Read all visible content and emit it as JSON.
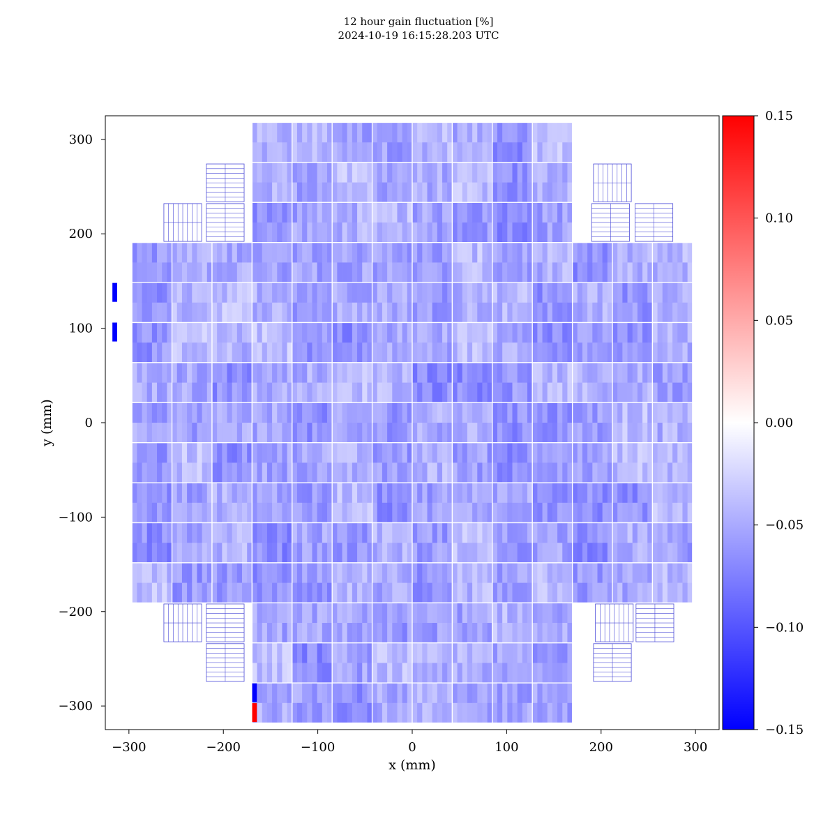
{
  "title": "12 hour gain fluctuation [%]",
  "subtitle": "2024-10-19 16:15:28.203 UTC",
  "chart_data": {
    "type": "heatmap",
    "title": "12 hour gain fluctuation [%]",
    "subtitle": "2024-10-19 16:15:28.203 UTC",
    "xlabel": "x (mm)",
    "ylabel": "y (mm)",
    "xlim": [
      -325,
      325
    ],
    "ylim": [
      -325,
      325
    ],
    "xticks": [
      -300,
      -200,
      -100,
      0,
      100,
      200,
      300
    ],
    "yticks": [
      -300,
      -200,
      -100,
      0,
      100,
      200,
      300
    ],
    "xtick_labels": [
      "−300",
      "−200",
      "−100",
      "0",
      "100",
      "200",
      "300"
    ],
    "ytick_labels": [
      "−300",
      "−200",
      "−100",
      "0",
      "100",
      "200",
      "300"
    ],
    "colormap": "bwr",
    "color_low": "#0000ff",
    "color_mid": "#ffffff",
    "color_high": "#ff0000",
    "colorbar_range": [
      -0.15,
      0.15
    ],
    "colorbar_ticks": [
      -0.15,
      -0.1,
      -0.05,
      0.0,
      0.05,
      0.1,
      0.15
    ],
    "colorbar_tick_labels": [
      "−0.15",
      "−0.10",
      "−0.05",
      "0.00",
      "0.05",
      "0.10",
      "0.15"
    ],
    "module_pitch_mm": 42.4,
    "module_rows": [
      {
        "y": 296.8,
        "cols": [
          -3,
          4
        ]
      },
      {
        "y": 254.4,
        "cols": [
          -3,
          4
        ]
      },
      {
        "y": 212.0,
        "cols": [
          -3,
          4
        ]
      },
      {
        "y": 169.6,
        "cols": [
          -6,
          7
        ]
      },
      {
        "y": 127.2,
        "cols": [
          -6,
          7
        ]
      },
      {
        "y": 84.8,
        "cols": [
          -6,
          7
        ]
      },
      {
        "y": 42.4,
        "cols": [
          -6,
          7
        ]
      },
      {
        "y": 0.0,
        "cols": [
          -6,
          7
        ]
      },
      {
        "y": -42.4,
        "cols": [
          -6,
          7
        ]
      },
      {
        "y": -84.8,
        "cols": [
          -6,
          7
        ]
      },
      {
        "y": -127.2,
        "cols": [
          -6,
          7
        ]
      },
      {
        "y": -169.6,
        "cols": [
          -6,
          7
        ]
      },
      {
        "y": -212.0,
        "cols": [
          -3,
          4
        ]
      },
      {
        "y": -254.4,
        "cols": [
          -3,
          4
        ]
      },
      {
        "y": -296.8,
        "cols": [
          -3,
          4
        ]
      }
    ],
    "typical_value": -0.05,
    "value_range_typical": [
      -0.085,
      -0.02
    ],
    "outliers": [
      {
        "x": -315,
        "y": 138,
        "value": -0.15
      },
      {
        "x": -315,
        "y": 96,
        "value": -0.15
      },
      {
        "x": -167,
        "y": -286,
        "value": -0.15
      },
      {
        "x": -167,
        "y": -307,
        "value": 0.15
      }
    ],
    "empty_modules": [
      {
        "cx": -243,
        "cy": 212
      },
      {
        "cx": -198,
        "cy": 254
      },
      {
        "cx": -198,
        "cy": 212
      },
      {
        "cx": 212,
        "cy": 254
      },
      {
        "cx": 210,
        "cy": 212
      },
      {
        "cx": 256,
        "cy": 212
      },
      {
        "cx": -243,
        "cy": -212
      },
      {
        "cx": -198,
        "cy": -212
      },
      {
        "cx": -198,
        "cy": -254
      },
      {
        "cx": 214,
        "cy": -212
      },
      {
        "cx": 257,
        "cy": -212
      },
      {
        "cx": 212,
        "cy": -254
      }
    ],
    "grid": false
  }
}
